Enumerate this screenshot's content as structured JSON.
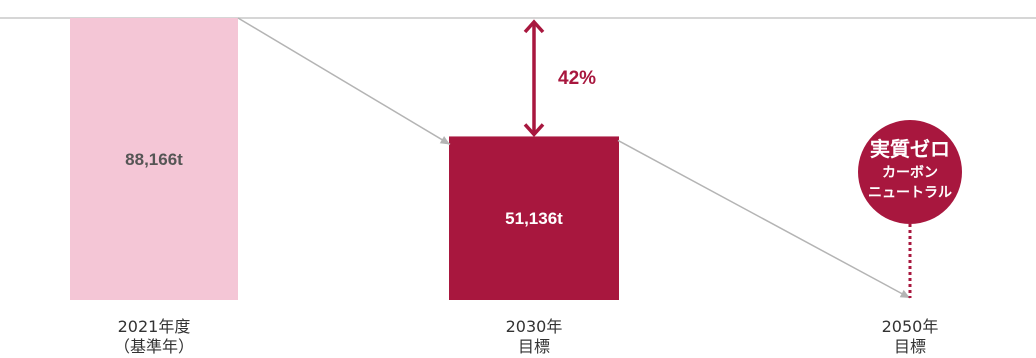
{
  "chart_data": {
    "type": "bar",
    "categories": [
      {
        "line1": "2021年度",
        "line2": "（基準年）"
      },
      {
        "line1": "2030年",
        "line2": "目標"
      },
      {
        "line1": "2050年",
        "line2": "目標"
      }
    ],
    "values": [
      88166,
      51136,
      0
    ],
    "value_labels": [
      "88,166t",
      "51,136t",
      ""
    ],
    "ylim": [
      0,
      88166
    ],
    "reduction": {
      "label": "42%",
      "from_category": 0,
      "to_category": 1
    },
    "target_badge": {
      "lines": [
        "実質ゼロ",
        "カーボン",
        "ニュートラル"
      ],
      "category": 2
    },
    "grid": false,
    "legend": "none"
  },
  "colors": {
    "bar_2021": "#f4c6d6",
    "bar_2030": "#a8173e",
    "accent": "#a8173e",
    "trend_line": "#b4b4b4",
    "top_line": "#c8c8c8",
    "label_dark": "#555555",
    "label_light": "#ffffff"
  }
}
